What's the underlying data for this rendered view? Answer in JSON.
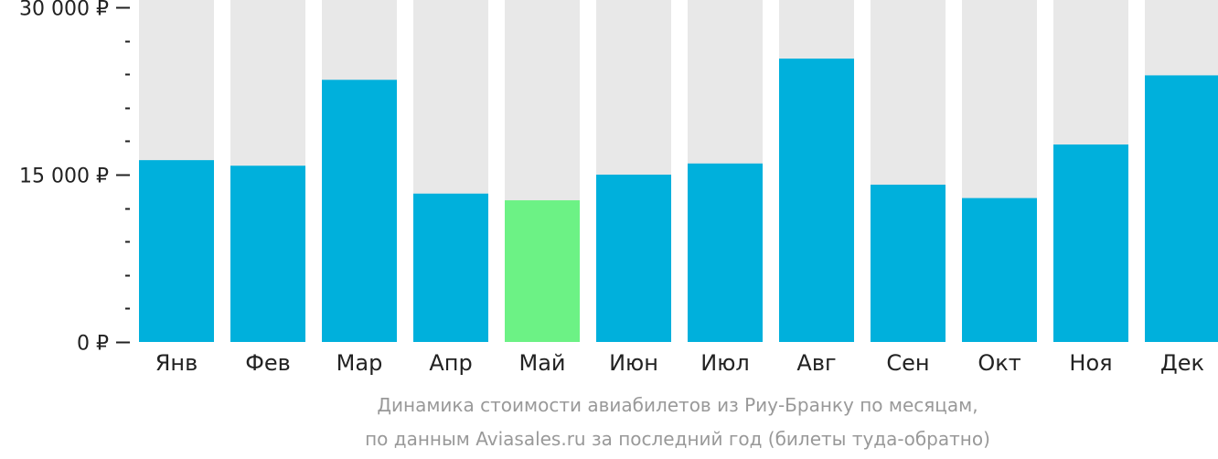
{
  "chart_data": {
    "type": "bar",
    "categories": [
      "Янв",
      "Фев",
      "Мар",
      "Апр",
      "Май",
      "Июн",
      "Июл",
      "Авг",
      "Сен",
      "Окт",
      "Ноя",
      "Дек"
    ],
    "values": [
      16300,
      15800,
      23500,
      13300,
      12700,
      15000,
      16000,
      25400,
      14100,
      12900,
      17700,
      23900
    ],
    "highlight_index": 4,
    "ylim": [
      0,
      30000
    ],
    "y_ticks": [
      {
        "value": 0,
        "label": "0 ₽"
      },
      {
        "value": 15000,
        "label": "15 000 ₽"
      },
      {
        "value": 30000,
        "label": "30 000 ₽"
      }
    ],
    "y_minor_step": 3000,
    "xlabel": "",
    "ylabel": "",
    "grid": false,
    "colors": {
      "bar": "#00b0dc",
      "highlight": "#6cf285",
      "track": "#e8e8e8",
      "axis": "#222222",
      "caption": "#999999"
    }
  },
  "caption": {
    "line1": "Динамика стоимости авиабилетов из Риу-Бранку по месяцам,",
    "line2": "по данным Aviasales.ru за последний год (билеты туда-обратно)"
  }
}
